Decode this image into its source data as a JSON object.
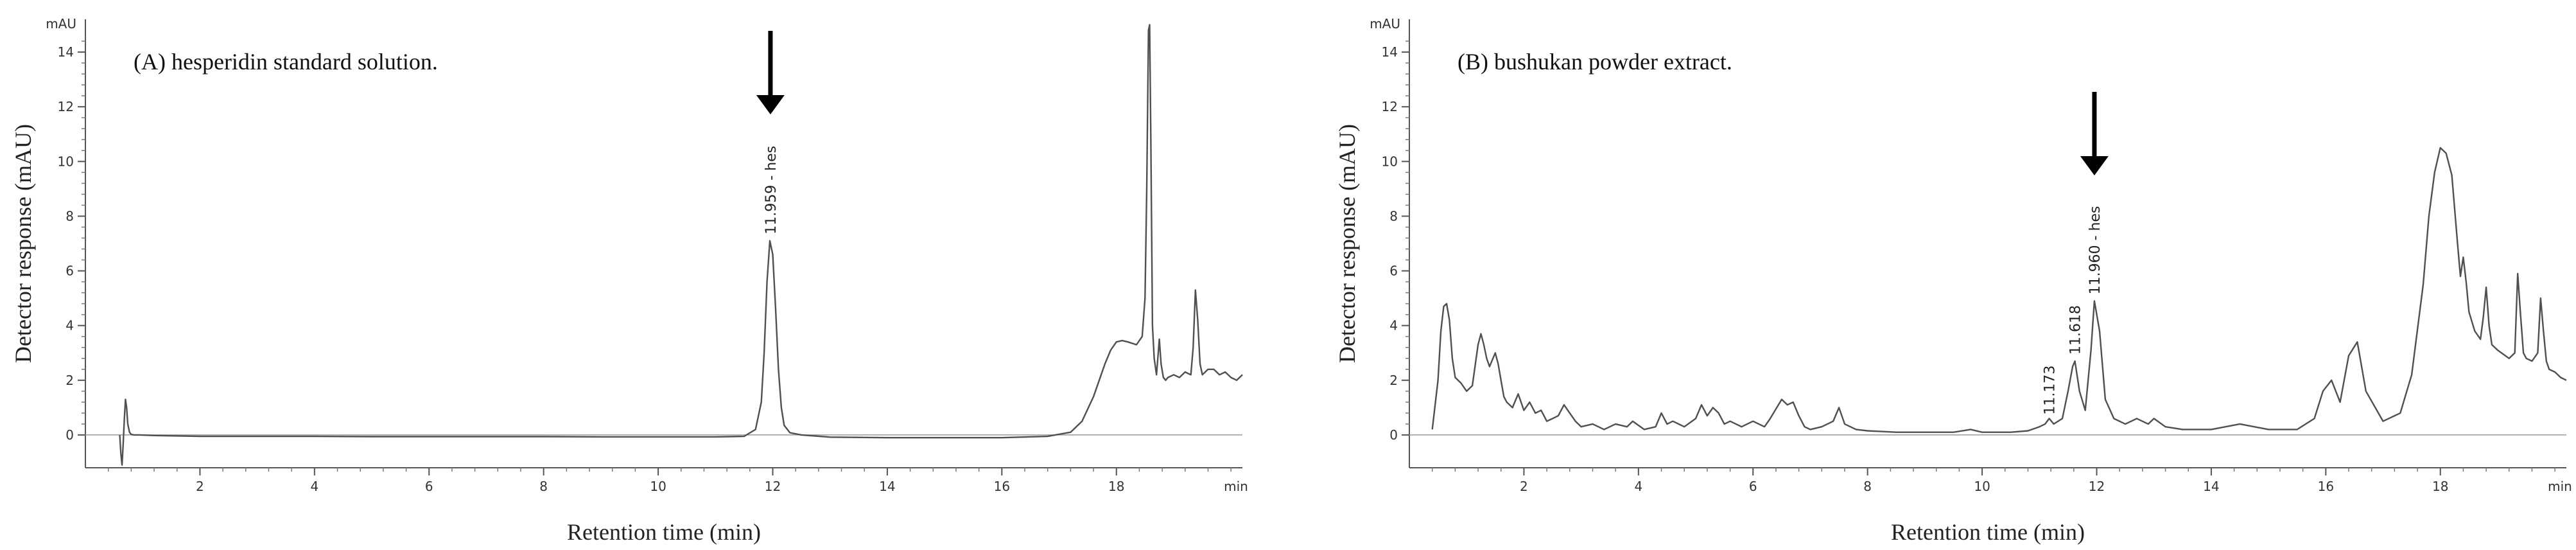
{
  "chart_data": [
    {
      "type": "line",
      "title": "(A) hesperidin standard solution.",
      "xlabel": "Retention time (min)",
      "ylabel": "Detector response (mAU)",
      "x_unit": "min",
      "y_unit": "mAU",
      "xlim": [
        0,
        20.2
      ],
      "ylim": [
        -1.2,
        15.2
      ],
      "xticks": [
        "2",
        "4",
        "6",
        "8",
        "10",
        "12",
        "14",
        "16",
        "18"
      ],
      "yticks": [
        "0",
        "2",
        "4",
        "6",
        "8",
        "10",
        "12",
        "14"
      ],
      "grid": false,
      "annotations": [
        {
          "text": "11.959 - hes",
          "x": 11.96,
          "y": 7.1,
          "arrow": true
        }
      ],
      "series": [
        {
          "x": [
            0.6,
            0.62,
            0.64,
            0.66,
            0.68,
            0.7,
            0.72,
            0.74,
            0.77,
            0.8,
            0.85,
            0.95,
            1.2,
            2,
            3,
            4,
            5,
            6,
            7,
            8,
            9,
            10,
            11,
            11.5,
            11.7,
            11.8,
            11.85,
            11.9,
            11.95,
            12.0,
            12.05,
            12.1,
            12.15,
            12.2,
            12.3,
            12.5,
            13,
            14,
            15,
            16,
            16.8,
            17.2,
            17.4,
            17.6,
            17.8,
            17.9,
            18.0,
            18.1,
            18.2,
            18.35,
            18.45,
            18.5,
            18.53,
            18.56,
            18.58,
            18.6,
            18.63,
            18.66,
            18.7,
            18.75,
            18.78,
            18.82,
            18.86,
            18.9,
            19.0,
            19.1,
            19.2,
            19.3,
            19.34,
            19.38,
            19.42,
            19.46,
            19.5,
            19.6,
            19.7,
            19.8,
            19.9,
            20.0,
            20.1,
            20.2
          ],
          "y": [
            0.0,
            -0.7,
            -1.1,
            -0.3,
            0.6,
            1.3,
            1.0,
            0.4,
            0.1,
            0.02,
            0.0,
            0.0,
            -0.02,
            -0.05,
            -0.05,
            -0.05,
            -0.06,
            -0.06,
            -0.06,
            -0.06,
            -0.07,
            -0.07,
            -0.07,
            -0.05,
            0.2,
            1.2,
            3.0,
            5.6,
            7.1,
            6.6,
            4.6,
            2.4,
            1.0,
            0.35,
            0.08,
            0.0,
            -0.08,
            -0.1,
            -0.1,
            -0.1,
            -0.05,
            0.1,
            0.5,
            1.4,
            2.6,
            3.1,
            3.4,
            3.45,
            3.4,
            3.3,
            3.6,
            5.0,
            9.0,
            14.8,
            15.0,
            11.0,
            4.0,
            2.8,
            2.2,
            3.5,
            2.6,
            2.1,
            2.0,
            2.1,
            2.2,
            2.1,
            2.3,
            2.2,
            3.2,
            5.3,
            4.2,
            2.6,
            2.2,
            2.4,
            2.4,
            2.2,
            2.3,
            2.1,
            2.0,
            2.2
          ]
        }
      ]
    },
    {
      "type": "line",
      "title": "(B) bushukan powder extract.",
      "xlabel": "Retention time (min)",
      "ylabel": "Detector response (mAU)",
      "x_unit": "min",
      "y_unit": "mAU",
      "xlim": [
        0,
        20.2
      ],
      "ylim": [
        -1.2,
        15.2
      ],
      "xticks": [
        "2",
        "4",
        "6",
        "8",
        "10",
        "12",
        "14",
        "16",
        "18"
      ],
      "yticks": [
        "0",
        "2",
        "4",
        "6",
        "8",
        "10",
        "12",
        "14"
      ],
      "grid": false,
      "annotations": [
        {
          "text": "11.173",
          "x": 11.17,
          "y": 0.5,
          "arrow": false
        },
        {
          "text": "11.618",
          "x": 11.62,
          "y": 2.7,
          "arrow": false
        },
        {
          "text": "11.960 - hes",
          "x": 11.96,
          "y": 4.9,
          "arrow": true
        }
      ],
      "series": [
        {
          "x": [
            0.4,
            0.5,
            0.55,
            0.6,
            0.65,
            0.7,
            0.75,
            0.8,
            0.9,
            1.0,
            1.1,
            1.2,
            1.25,
            1.3,
            1.35,
            1.4,
            1.5,
            1.55,
            1.6,
            1.65,
            1.7,
            1.8,
            1.9,
            2.0,
            2.1,
            2.2,
            2.3,
            2.4,
            2.5,
            2.6,
            2.7,
            2.8,
            2.9,
            3.0,
            3.2,
            3.4,
            3.6,
            3.8,
            3.9,
            4.1,
            4.3,
            4.4,
            4.5,
            4.6,
            4.8,
            5.0,
            5.1,
            5.2,
            5.3,
            5.4,
            5.5,
            5.6,
            5.8,
            6.0,
            6.2,
            6.3,
            6.5,
            6.6,
            6.7,
            6.8,
            6.9,
            7.0,
            7.2,
            7.4,
            7.5,
            7.6,
            7.8,
            8.0,
            8.5,
            9.0,
            9.5,
            9.8,
            10.0,
            10.5,
            10.8,
            11.0,
            11.1,
            11.17,
            11.25,
            11.4,
            11.5,
            11.58,
            11.62,
            11.7,
            11.8,
            11.9,
            11.96,
            12.05,
            12.15,
            12.3,
            12.5,
            12.7,
            12.9,
            13.0,
            13.2,
            13.5,
            14.0,
            14.5,
            15.0,
            15.5,
            15.8,
            15.95,
            16.1,
            16.25,
            16.4,
            16.55,
            16.7,
            17.0,
            17.3,
            17.5,
            17.7,
            17.8,
            17.9,
            18.0,
            18.1,
            18.2,
            18.3,
            18.35,
            18.4,
            18.45,
            18.5,
            18.6,
            18.7,
            18.75,
            18.8,
            18.85,
            18.9,
            19.0,
            19.2,
            19.3,
            19.35,
            19.4,
            19.45,
            19.5,
            19.6,
            19.7,
            19.75,
            19.8,
            19.85,
            19.9,
            20.0,
            20.1,
            20.2
          ],
          "y": [
            0.2,
            2.0,
            3.8,
            4.7,
            4.8,
            4.2,
            2.8,
            2.1,
            1.9,
            1.6,
            1.8,
            3.3,
            3.7,
            3.3,
            2.8,
            2.5,
            3.0,
            2.6,
            2.0,
            1.4,
            1.2,
            1.0,
            1.5,
            0.9,
            1.2,
            0.8,
            0.9,
            0.5,
            0.6,
            0.7,
            1.1,
            0.8,
            0.5,
            0.3,
            0.4,
            0.2,
            0.4,
            0.3,
            0.5,
            0.2,
            0.3,
            0.8,
            0.4,
            0.5,
            0.3,
            0.6,
            1.1,
            0.7,
            1.0,
            0.8,
            0.4,
            0.5,
            0.3,
            0.5,
            0.3,
            0.6,
            1.3,
            1.1,
            1.2,
            0.7,
            0.3,
            0.2,
            0.3,
            0.5,
            1.0,
            0.4,
            0.2,
            0.15,
            0.1,
            0.1,
            0.1,
            0.2,
            0.1,
            0.1,
            0.15,
            0.3,
            0.4,
            0.6,
            0.4,
            0.6,
            1.6,
            2.5,
            2.7,
            1.6,
            0.9,
            3.1,
            4.9,
            3.8,
            1.3,
            0.6,
            0.4,
            0.6,
            0.4,
            0.6,
            0.3,
            0.2,
            0.2,
            0.4,
            0.2,
            0.2,
            0.6,
            1.6,
            2.0,
            1.2,
            2.9,
            3.4,
            1.6,
            0.5,
            0.8,
            2.2,
            5.5,
            8.0,
            9.6,
            10.5,
            10.3,
            9.5,
            7.0,
            5.8,
            6.5,
            5.6,
            4.5,
            3.8,
            3.5,
            4.3,
            5.4,
            4.0,
            3.3,
            3.1,
            2.8,
            3.0,
            5.9,
            4.4,
            3.0,
            2.8,
            2.7,
            3.0,
            5.0,
            3.8,
            2.7,
            2.4,
            2.3,
            2.1,
            2.0
          ]
        }
      ]
    }
  ]
}
